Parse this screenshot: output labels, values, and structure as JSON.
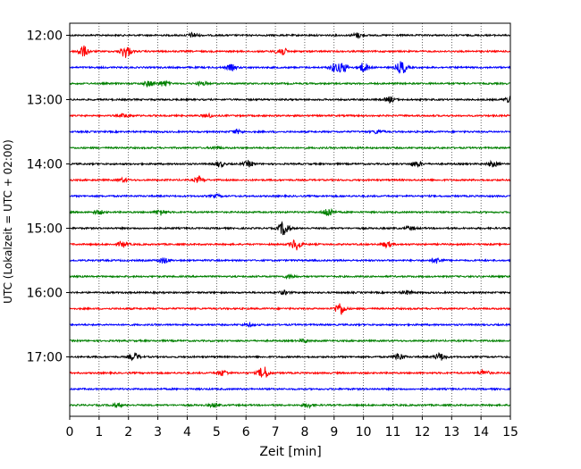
{
  "chart_data": {
    "type": "line",
    "subtype": "helicorder / seismogram drum",
    "xlabel": "Zeit  [min]",
    "ylabel": "UTC (Lokalzeit = UTC + 02:00)",
    "x_ticks": [
      "0",
      "1",
      "2",
      "3",
      "4",
      "5",
      "6",
      "7",
      "8",
      "9",
      "10",
      "11",
      "12",
      "13",
      "14",
      "15"
    ],
    "xlim": [
      0,
      15
    ],
    "row_interval_min": 15,
    "y_tick_labels": [
      "12:00",
      "13:00",
      "14:00",
      "15:00",
      "16:00",
      "17:00"
    ],
    "y_tick_rows": [
      0,
      4,
      8,
      12,
      16,
      20
    ],
    "grid": "vertical dotted lines at each minute",
    "trace_color_cycle": [
      "#000000",
      "#ff0000",
      "#0000ff",
      "#008000"
    ],
    "traces": [
      {
        "start": "12:00",
        "events": [
          {
            "t": 4.2,
            "amp": 2.5
          },
          {
            "t": 9.8,
            "amp": 2.5
          }
        ]
      },
      {
        "start": "12:15",
        "events": [
          {
            "t": 0.45,
            "amp": 6
          },
          {
            "t": 1.9,
            "amp": 7
          },
          {
            "t": 7.2,
            "amp": 5
          }
        ]
      },
      {
        "start": "12:30",
        "events": [
          {
            "t": 5.5,
            "amp": 3
          },
          {
            "t": 9.0,
            "amp": 4
          },
          {
            "t": 9.3,
            "amp": 5
          },
          {
            "t": 10.0,
            "amp": 5
          },
          {
            "t": 11.3,
            "amp": 7
          }
        ]
      },
      {
        "start": "12:45",
        "events": [
          {
            "t": 2.7,
            "amp": 3
          },
          {
            "t": 3.2,
            "amp": 3
          },
          {
            "t": 4.5,
            "amp": 2
          }
        ]
      },
      {
        "start": "13:00",
        "events": [
          {
            "t": 10.9,
            "amp": 3
          },
          {
            "t": 15.0,
            "amp": 4
          }
        ]
      },
      {
        "start": "13:15",
        "events": [
          {
            "t": 1.9,
            "amp": 2
          },
          {
            "t": 4.7,
            "amp": 2
          }
        ]
      },
      {
        "start": "13:30",
        "events": [
          {
            "t": 5.7,
            "amp": 2
          },
          {
            "t": 10.5,
            "amp": 2
          }
        ]
      },
      {
        "start": "13:45",
        "events": [
          {
            "t": 5.0,
            "amp": 1.5
          }
        ]
      },
      {
        "start": "14:00",
        "events": [
          {
            "t": 5.1,
            "amp": 3
          },
          {
            "t": 6.1,
            "amp": 3
          },
          {
            "t": 11.8,
            "amp": 3
          },
          {
            "t": 14.4,
            "amp": 3
          }
        ]
      },
      {
        "start": "14:15",
        "events": [
          {
            "t": 1.8,
            "amp": 2
          },
          {
            "t": 4.4,
            "amp": 3
          }
        ]
      },
      {
        "start": "14:30",
        "events": [
          {
            "t": 5.0,
            "amp": 1.5
          }
        ]
      },
      {
        "start": "14:45",
        "events": [
          {
            "t": 1.0,
            "amp": 2
          },
          {
            "t": 3.1,
            "amp": 3
          },
          {
            "t": 8.8,
            "amp": 5
          }
        ]
      },
      {
        "start": "15:00",
        "events": [
          {
            "t": 7.3,
            "amp": 8
          },
          {
            "t": 11.6,
            "amp": 2
          }
        ]
      },
      {
        "start": "15:15",
        "events": [
          {
            "t": 1.8,
            "amp": 3
          },
          {
            "t": 7.7,
            "amp": 6
          },
          {
            "t": 10.8,
            "amp": 3
          }
        ]
      },
      {
        "start": "15:30",
        "events": [
          {
            "t": 3.2,
            "amp": 3
          },
          {
            "t": 12.5,
            "amp": 3
          }
        ]
      },
      {
        "start": "15:45",
        "events": [
          {
            "t": 7.5,
            "amp": 2
          }
        ]
      },
      {
        "start": "16:00",
        "events": [
          {
            "t": 7.3,
            "amp": 2
          },
          {
            "t": 11.5,
            "amp": 2
          }
        ]
      },
      {
        "start": "16:15",
        "events": [
          {
            "t": 9.2,
            "amp": 7
          }
        ]
      },
      {
        "start": "16:30",
        "events": [
          {
            "t": 6.1,
            "amp": 1.5
          }
        ]
      },
      {
        "start": "16:45",
        "events": [
          {
            "t": 8.0,
            "amp": 1.5
          }
        ]
      },
      {
        "start": "17:00",
        "events": [
          {
            "t": 2.2,
            "amp": 4
          },
          {
            "t": 11.2,
            "amp": 4
          },
          {
            "t": 12.6,
            "amp": 4
          }
        ]
      },
      {
        "start": "17:15",
        "events": [
          {
            "t": 5.2,
            "amp": 3
          },
          {
            "t": 6.6,
            "amp": 7
          },
          {
            "t": 14.1,
            "amp": 3
          }
        ]
      },
      {
        "start": "17:30",
        "events": []
      },
      {
        "start": "17:45",
        "events": [
          {
            "t": 1.6,
            "amp": 2
          },
          {
            "t": 4.9,
            "amp": 2
          },
          {
            "t": 8.1,
            "amp": 2
          }
        ]
      }
    ]
  }
}
